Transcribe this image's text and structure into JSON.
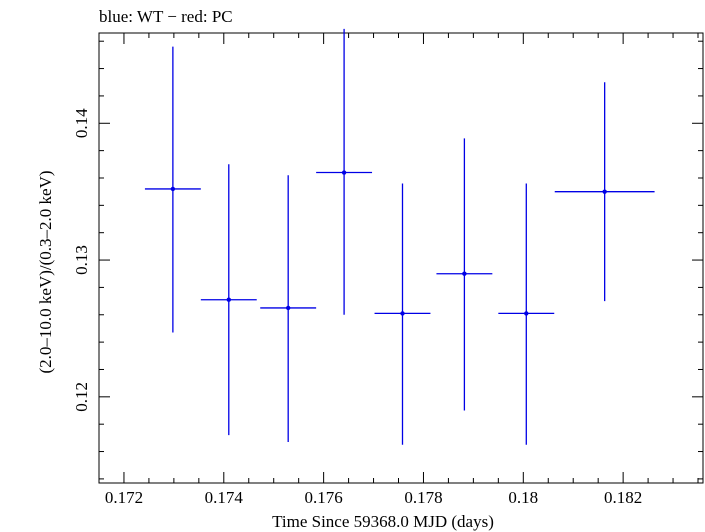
{
  "chart_data": {
    "type": "scatter",
    "title": "blue: WT − red: PC",
    "xlabel": "Time Since 59368.0 MJD (days)",
    "ylabel": "(2.0–10.0 keV)/(0.3–2.0 keV)",
    "xlim": [
      0.1715,
      0.1836
    ],
    "ylim": [
      0.1137,
      0.1466
    ],
    "x_ticks": [
      0.172,
      0.174,
      0.176,
      0.178,
      0.18,
      0.182
    ],
    "x_tick_labels": [
      "0.172",
      "0.174",
      "0.176",
      "0.178",
      "0.18",
      "0.182"
    ],
    "y_ticks": [
      0.12,
      0.13,
      0.14
    ],
    "y_tick_labels": [
      "0.12",
      "0.13",
      "0.14"
    ],
    "grid": false,
    "legend": "none",
    "series": [
      {
        "color": "#0000e6",
        "points": [
          {
            "x": 0.17298,
            "xerr": 0.00056,
            "y": 0.1352,
            "yerr_low": 0.0105,
            "yerr_high": 0.0104
          },
          {
            "x": 0.1741,
            "xerr": 0.00056,
            "y": 0.1271,
            "yerr_low": 0.0099,
            "yerr_high": 0.0099
          },
          {
            "x": 0.17529,
            "xerr": 0.00056,
            "y": 0.1265,
            "yerr_low": 0.0098,
            "yerr_high": 0.0097
          },
          {
            "x": 0.17641,
            "xerr": 0.00056,
            "y": 0.1364,
            "yerr_low": 0.0104,
            "yerr_high": 0.0105
          },
          {
            "x": 0.17758,
            "xerr": 0.00056,
            "y": 0.1261,
            "yerr_low": 0.0096,
            "yerr_high": 0.0095
          },
          {
            "x": 0.17882,
            "xerr": 0.00056,
            "y": 0.129,
            "yerr_low": 0.01,
            "yerr_high": 0.0099
          },
          {
            "x": 0.18006,
            "xerr": 0.00056,
            "y": 0.1261,
            "yerr_low": 0.0096,
            "yerr_high": 0.0095
          },
          {
            "x": 0.18163,
            "xerr": 0.001,
            "y": 0.135,
            "yerr_low": 0.008,
            "yerr_high": 0.008
          }
        ]
      }
    ]
  }
}
